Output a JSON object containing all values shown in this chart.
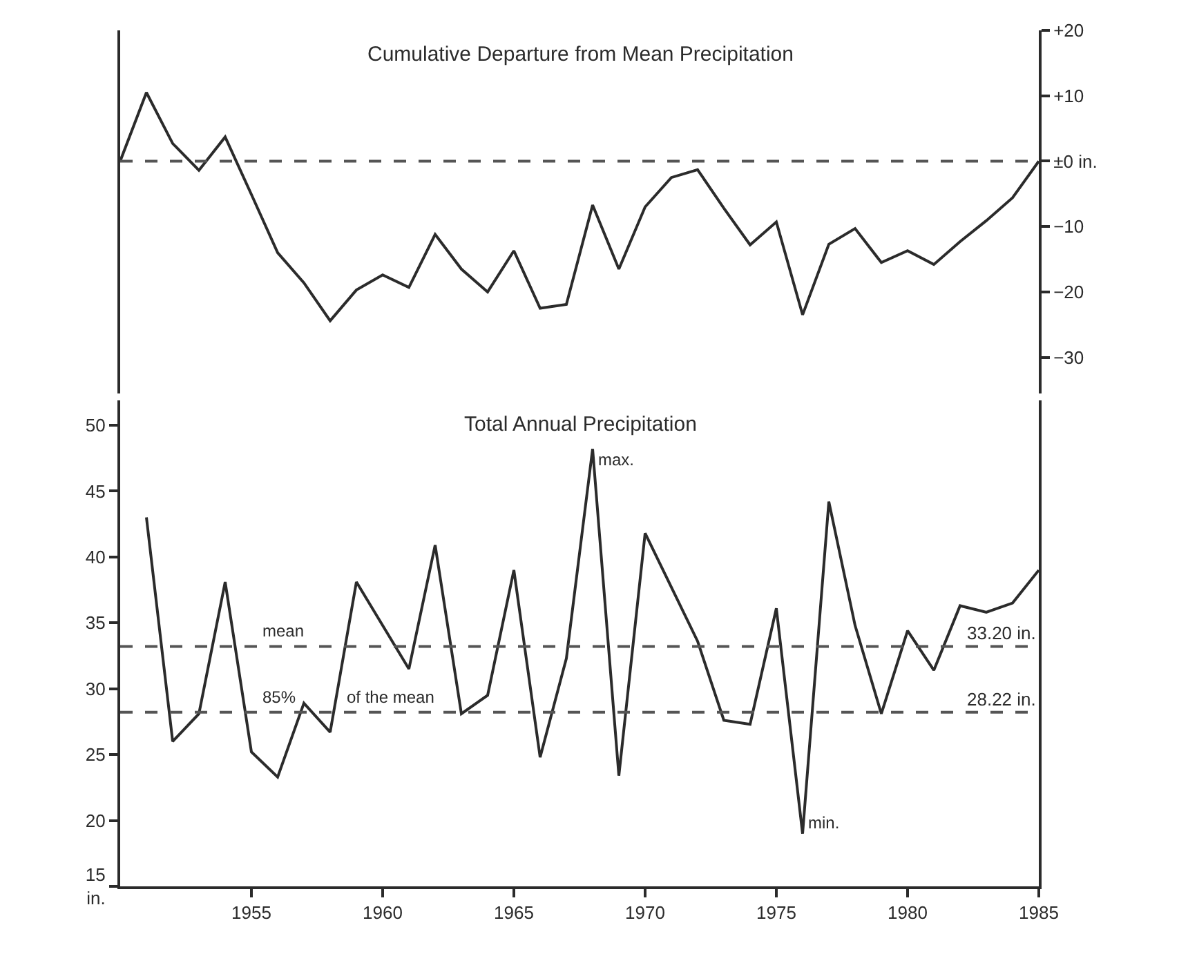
{
  "chart_data": [
    {
      "type": "line",
      "title": "Cumulative Departure from Mean Precipitation",
      "tick_labels": "y",
      "xlim": [
        1950,
        1985
      ],
      "ylim": [
        -35.5,
        20
      ],
      "yticks": [
        {
          "value": 20,
          "label": "+20"
        },
        {
          "value": 10,
          "label": "+10"
        },
        {
          "value": 0,
          "label": "±0 in."
        },
        {
          "value": -10,
          "label": "−10"
        },
        {
          "value": -20,
          "label": "−20"
        },
        {
          "value": -30,
          "label": "−30"
        }
      ],
      "x": [
        1950,
        1951,
        1952,
        1953,
        1954,
        1955,
        1956,
        1957,
        1958,
        1959,
        1960,
        1961,
        1962,
        1963,
        1964,
        1965,
        1966,
        1967,
        1968,
        1969,
        1970,
        1971,
        1972,
        1973,
        1974,
        1975,
        1976,
        1977,
        1978,
        1979,
        1980,
        1981,
        1982,
        1983,
        1984,
        1985
      ],
      "series": [
        {
          "color": "#2b2b2b",
          "values": [
            0,
            10.5,
            2.7,
            -1.4,
            3.7,
            -5.1,
            -14.0,
            -18.6,
            -24.4,
            -19.7,
            -17.4,
            -19.3,
            -11.2,
            -16.5,
            -20.0,
            -13.7,
            -22.5,
            -21.9,
            -6.7,
            -16.5,
            -7.0,
            -2.5,
            -1.3,
            -7.2,
            -12.8,
            -9.3,
            -23.5,
            -12.7,
            -10.3,
            -15.5,
            -13.7,
            -15.8,
            -12.3,
            -9.1,
            -5.6,
            0
          ]
        }
      ],
      "ref_lines": [
        {
          "axis": "y",
          "value": 0,
          "color": "#555555",
          "line_style": "dashed"
        }
      ],
      "marker": "none",
      "line_style": "solid"
    },
    {
      "type": "line",
      "title": "Total Annual Precipitation",
      "xlim": [
        1950,
        1985
      ],
      "ylim": [
        15,
        51.9
      ],
      "xticks": [
        1955,
        1960,
        1965,
        1970,
        1975,
        1980,
        1985
      ],
      "yticks": [
        {
          "value": 15,
          "label": "15\nin."
        },
        20,
        25,
        30,
        35,
        40,
        45,
        50
      ],
      "x": [
        1951,
        1952,
        1953,
        1954,
        1955,
        1956,
        1957,
        1958,
        1959,
        1960,
        1961,
        1962,
        1963,
        1964,
        1965,
        1966,
        1967,
        1968,
        1969,
        1970,
        1971,
        1972,
        1973,
        1974,
        1975,
        1976,
        1977,
        1978,
        1979,
        1980,
        1981,
        1982,
        1983,
        1984,
        1985
      ],
      "series": [
        {
          "color": "#2b2b2b",
          "values": [
            43.0,
            26.0,
            28.1,
            38.1,
            25.2,
            23.3,
            28.9,
            26.7,
            38.1,
            34.8,
            31.5,
            40.9,
            28.1,
            29.5,
            39.0,
            24.8,
            32.3,
            48.2,
            23.4,
            41.8,
            37.7,
            33.6,
            27.6,
            27.3,
            36.1,
            19.0,
            44.2,
            34.8,
            28.1,
            34.4,
            31.4,
            36.3,
            35.8,
            36.5,
            39.0
          ]
        }
      ],
      "ref_lines": [
        {
          "axis": "y",
          "value": 33.2,
          "label": "33.20 in.",
          "color": "#555555",
          "line_style": "dashed"
        },
        {
          "axis": "y",
          "value": 28.22,
          "label": "28.22 in.",
          "color": "#555555",
          "line_style": "dashed"
        }
      ],
      "annotations": [
        {
          "text": "mean",
          "x": 1955.2,
          "y": 33.2
        },
        {
          "text": "85%",
          "x": 1955.2,
          "y": 28.22
        },
        {
          "text": "of the mean",
          "x": 1958.4,
          "y": 28.22
        },
        {
          "text": "max.",
          "x": 1968,
          "y": 48.2
        },
        {
          "text": "min.",
          "x": 1976,
          "y": 19.0
        }
      ],
      "marker": "none",
      "line_style": "solid"
    }
  ]
}
